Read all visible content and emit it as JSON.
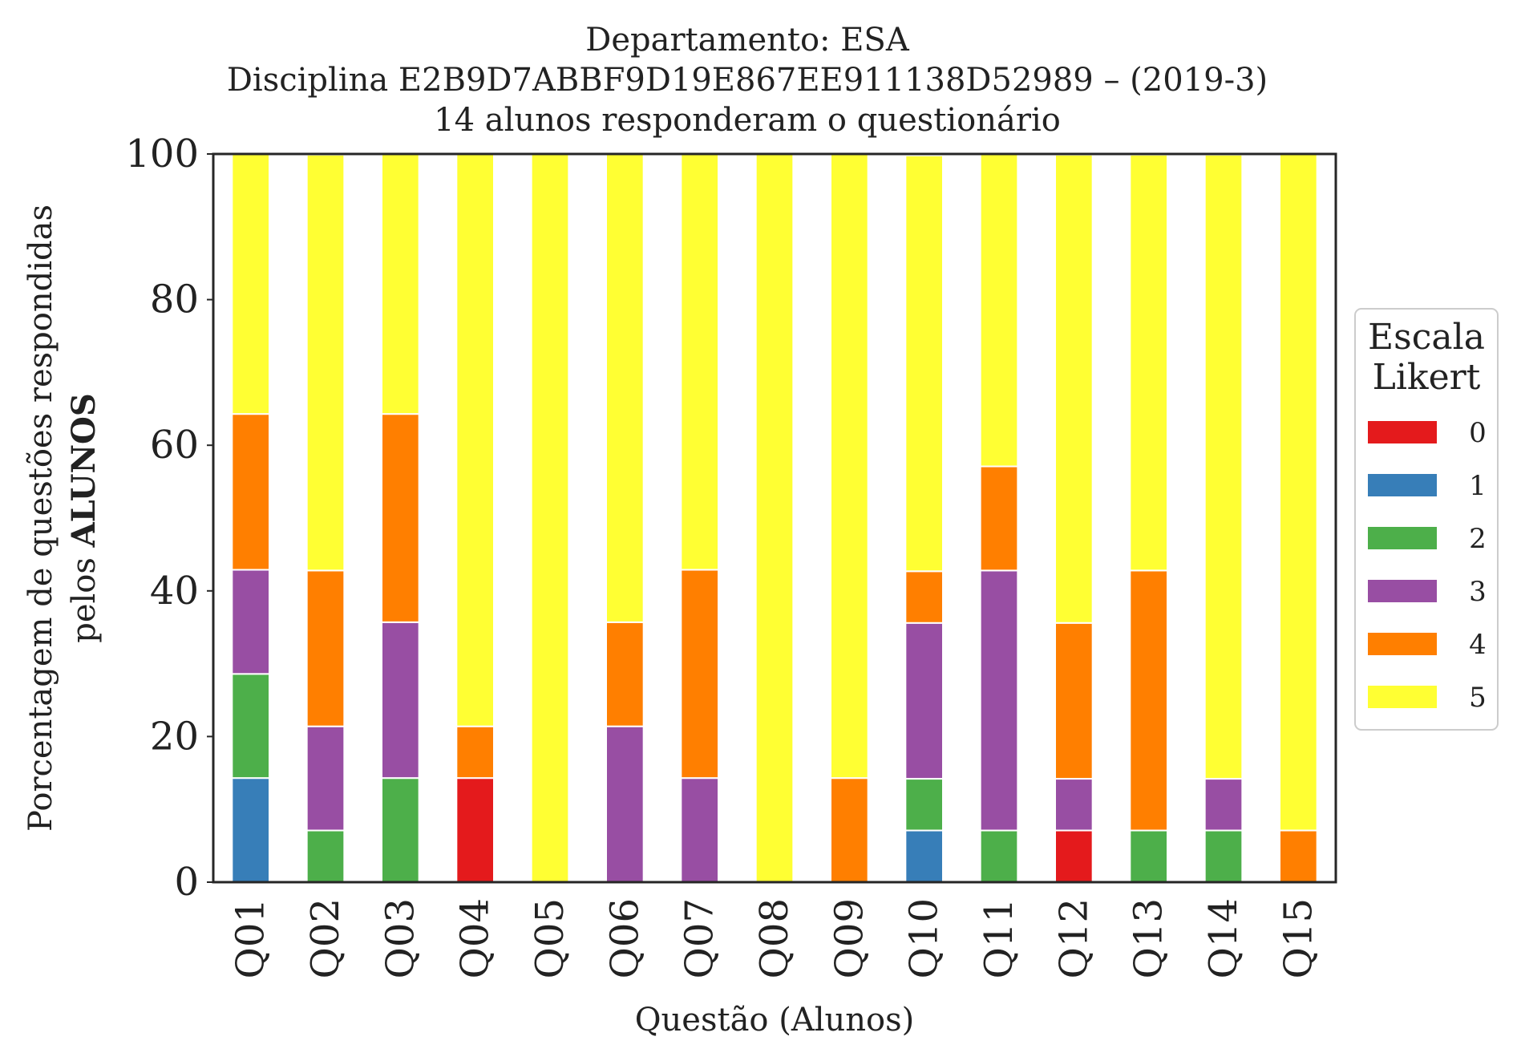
{
  "chart_data": {
    "type": "bar",
    "stacked": true,
    "title_lines": [
      "Departamento: ESA",
      "Disciplina E2B9D7ABBF9D19E867EE911138D52989 – (2019-3)",
      "14 alunos responderam o questionário"
    ],
    "xlabel": "Questão (Alunos)",
    "ylabel_line1": "Porcentagem de questões respondidas",
    "ylabel_line2_prefix": "pelos ",
    "ylabel_line2_bold": "ALUNOS",
    "ylim": [
      0,
      100
    ],
    "yticks": [
      "0",
      "20",
      "40",
      "60",
      "80",
      "100"
    ],
    "grid": false,
    "legend": {
      "title": [
        "Escala",
        "Likert"
      ],
      "placement": "right-center"
    },
    "categories": [
      "Q01",
      "Q02",
      "Q03",
      "Q04",
      "Q05",
      "Q06",
      "Q07",
      "Q08",
      "Q09",
      "Q10",
      "Q11",
      "Q12",
      "Q13",
      "Q14",
      "Q15"
    ],
    "series": [
      {
        "name": "0",
        "color": "#e41a1c",
        "values": [
          0,
          0,
          0,
          14.3,
          0,
          0,
          0,
          0,
          0,
          0,
          0,
          7.1,
          0,
          0,
          0
        ]
      },
      {
        "name": "1",
        "color": "#377eb8",
        "values": [
          14.3,
          0,
          0,
          0,
          0,
          0,
          0,
          0,
          0,
          7.1,
          0,
          0,
          0,
          0,
          0
        ]
      },
      {
        "name": "2",
        "color": "#4daf4a",
        "values": [
          14.3,
          7.1,
          14.3,
          0,
          0,
          0,
          0,
          0,
          0,
          7.1,
          7.1,
          0,
          7.1,
          7.1,
          0
        ]
      },
      {
        "name": "3",
        "color": "#984ea3",
        "values": [
          14.3,
          14.3,
          21.4,
          0,
          0,
          21.4,
          14.3,
          0,
          0,
          21.4,
          35.7,
          7.1,
          0,
          7.1,
          0
        ]
      },
      {
        "name": "4",
        "color": "#ff7f00",
        "values": [
          21.4,
          21.4,
          28.6,
          7.1,
          0,
          14.3,
          28.6,
          0,
          14.3,
          7.1,
          14.3,
          21.4,
          35.7,
          0,
          7.1
        ]
      },
      {
        "name": "5",
        "color": "#ffff33",
        "values": [
          35.7,
          57.1,
          35.7,
          78.6,
          100,
          64.3,
          57.1,
          100,
          85.7,
          57.1,
          42.9,
          64.3,
          57.1,
          85.7,
          92.9
        ]
      }
    ]
  }
}
